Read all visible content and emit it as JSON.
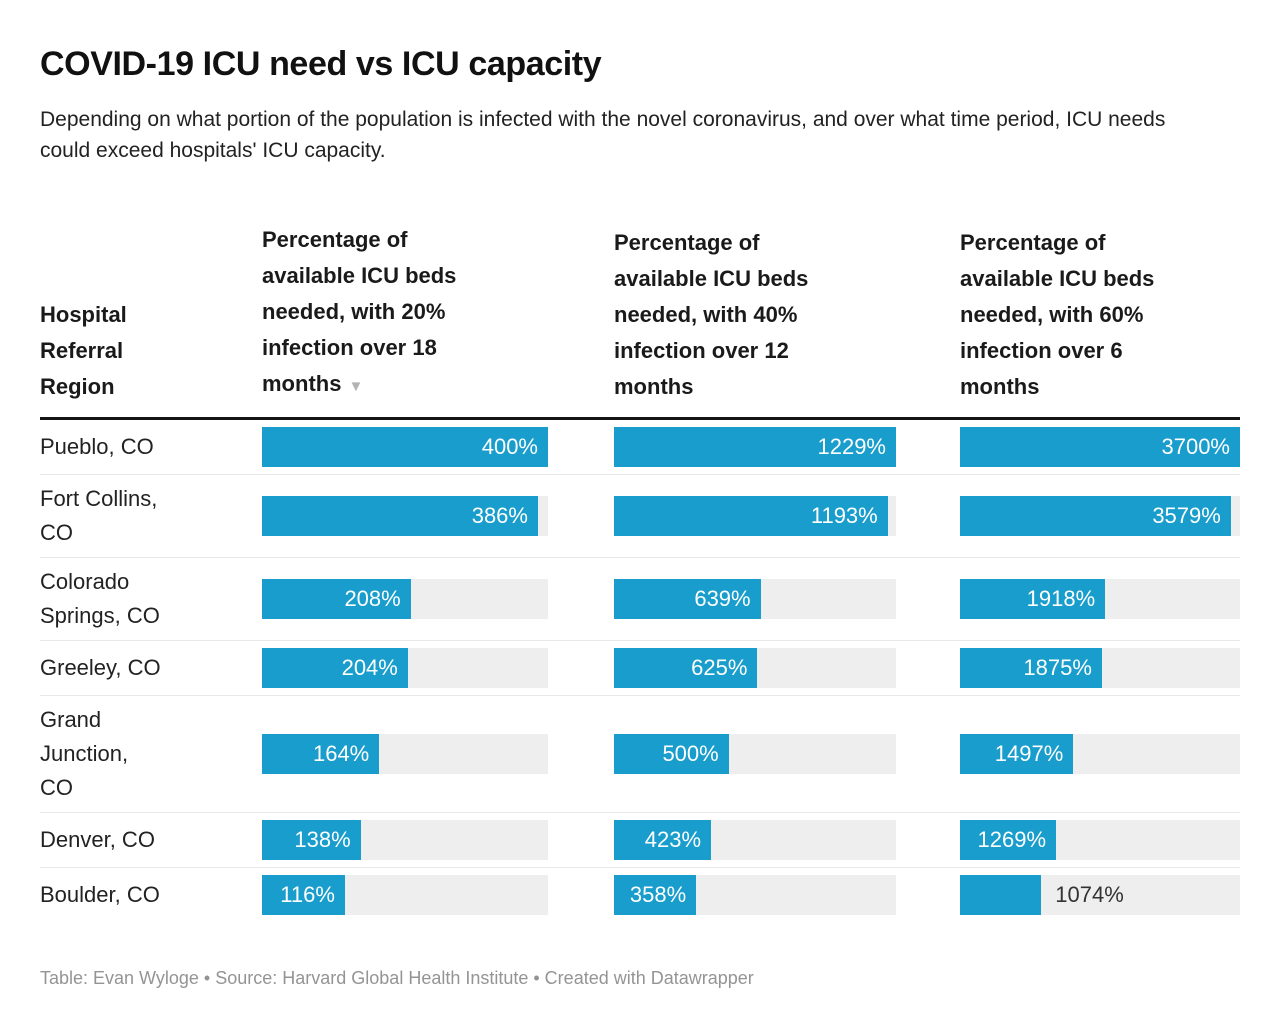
{
  "header": {
    "title": "COVID-19 ICU need vs ICU capacity",
    "subtitle": "Depending on what portion of the population is infected with the novel coronavirus, and over what time period, ICU needs could exceed hospitals' ICU capacity."
  },
  "chart_data": {
    "type": "table",
    "title": "COVID-19 ICU need vs ICU capacity",
    "subtitle": "Depending on what portion of the population is infected with the novel coronavirus, and over what time period, ICU needs could exceed hospitals' ICU capacity.",
    "row_header": "Hospital Referral Region",
    "categories": [
      "Pueblo, CO",
      "Fort Collins, CO",
      "Colorado Springs, CO",
      "Greeley, CO",
      "Grand Junction, CO",
      "Denver, CO",
      "Boulder, CO"
    ],
    "series": [
      {
        "name": "Percentage of available ICU beds needed, with 20% infection over 18 months",
        "unit": "%",
        "values": [
          400,
          386,
          208,
          204,
          164,
          138,
          116
        ]
      },
      {
        "name": "Percentage of available ICU beds needed, with 40% infection over 12 months",
        "unit": "%",
        "values": [
          1229,
          1193,
          639,
          625,
          500,
          423,
          358
        ]
      },
      {
        "name": "Percentage of available ICU beds needed, with 60% infection over 6 months",
        "unit": "%",
        "values": [
          3700,
          3579,
          1918,
          1875,
          1497,
          1269,
          1074
        ]
      }
    ],
    "bar_style": "horizontal bars inside table cells, each column scaled to its own maximum value",
    "column_scale_max": [
      400,
      1229,
      3700
    ],
    "sorted_by": "column 1 descending"
  },
  "table": {
    "region_header": "Hospital Referral Region",
    "region_display": [
      "Pueblo, CO",
      "Fort Collins,\nCO",
      "Colorado\nSprings, CO",
      "Greeley, CO",
      "Grand\nJunction,\nCO",
      "Denver, CO",
      "Boulder, CO"
    ],
    "label_outside": [
      [
        false,
        false,
        false
      ],
      [
        false,
        false,
        false
      ],
      [
        false,
        false,
        false
      ],
      [
        false,
        false,
        false
      ],
      [
        false,
        false,
        false
      ],
      [
        false,
        false,
        false
      ],
      [
        false,
        false,
        true
      ]
    ]
  },
  "icons": {
    "sort_descending": "▼"
  },
  "colors": {
    "bar_blue": "#189dcc",
    "track_gray": "#eeeeee",
    "header_rule": "#151515",
    "row_rule": "#e8e8e8",
    "bar_label_inside": "#ffffff",
    "bar_label_outside": "#333333",
    "footer_text": "#949494"
  },
  "footer": {
    "text": "Table: Evan Wyloge • Source: Harvard Global Health Institute • Created with Datawrapper"
  }
}
